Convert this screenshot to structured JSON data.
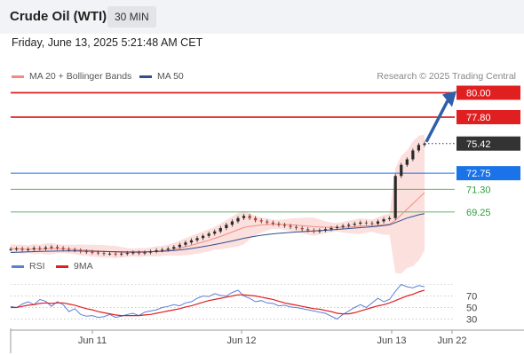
{
  "header": {
    "title": "Crude Oil (WTI)",
    "timeframe": "30 MIN",
    "datetime": "Friday, June 13, 2025 5:21:48 AM CET"
  },
  "legend": {
    "ma20": {
      "label": "MA 20 + Bollinger Bands",
      "color": "#f28b82"
    },
    "ma50": {
      "label": "MA 50",
      "color": "#2f4f8f"
    },
    "credit": "Research © 2025 Trading Central"
  },
  "rsi_legend": {
    "rsi": {
      "label": "RSI",
      "color": "#5b7fd6"
    },
    "ma9": {
      "label": "9MA",
      "color": "#e02020"
    }
  },
  "chart_data": [
    {
      "type": "line",
      "name": "price",
      "x_ticks": [
        "Jun 11",
        "Jun 12",
        "Jun 13",
        "Jun 22"
      ],
      "levels": [
        {
          "label": "80.00",
          "value": 80.0,
          "style": "resistance",
          "color": "#e02020"
        },
        {
          "label": "77.80",
          "value": 77.8,
          "style": "resistance",
          "color": "#e02020"
        },
        {
          "label": "75.42",
          "value": 75.42,
          "style": "last",
          "color": "#333333"
        },
        {
          "label": "72.75",
          "value": 72.75,
          "style": "pivot",
          "color": "#1a73e8"
        },
        {
          "label": "71.30",
          "value": 71.3,
          "style": "support",
          "color": "#2e9e3f"
        },
        {
          "label": "69.25",
          "value": 69.25,
          "style": "support",
          "color": "#2e9e3f"
        }
      ],
      "close": [
        65.9,
        65.95,
        65.85,
        65.9,
        66.0,
        65.95,
        66.05,
        66.1,
        66.0,
        65.9,
        65.85,
        65.8,
        65.7,
        65.65,
        65.6,
        65.55,
        65.5,
        65.5,
        65.45,
        65.5,
        65.55,
        65.6,
        65.55,
        65.6,
        65.7,
        65.8,
        65.85,
        65.95,
        66.1,
        66.3,
        66.5,
        66.7,
        66.9,
        67.1,
        67.3,
        67.5,
        67.8,
        68.1,
        68.4,
        68.7,
        68.9,
        68.7,
        68.5,
        68.4,
        68.3,
        68.2,
        68.1,
        68.0,
        67.9,
        67.8,
        67.7,
        67.6,
        67.5,
        67.6,
        67.7,
        67.8,
        67.9,
        68.0,
        68.1,
        68.2,
        68.3,
        68.25,
        68.2,
        68.4,
        68.6,
        68.7,
        72.5,
        73.5,
        74.0,
        74.8,
        75.3,
        75.42
      ],
      "ma20": [
        65.95,
        65.95,
        65.9,
        65.9,
        65.9,
        65.9,
        65.92,
        65.95,
        65.95,
        65.93,
        65.9,
        65.87,
        65.83,
        65.8,
        65.77,
        65.73,
        65.7,
        65.67,
        65.64,
        65.62,
        65.6,
        65.6,
        65.6,
        65.62,
        65.65,
        65.7,
        65.75,
        65.82,
        65.9,
        66.0,
        66.12,
        66.25,
        66.4,
        66.55,
        66.7,
        66.88,
        67.05,
        67.25,
        67.45,
        67.65,
        67.85,
        67.95,
        68.02,
        68.08,
        68.12,
        68.14,
        68.14,
        68.12,
        68.1,
        68.06,
        68.02,
        67.98,
        67.93,
        67.9,
        67.88,
        67.87,
        67.87,
        67.88,
        67.9,
        67.93,
        67.97,
        68.0,
        68.02,
        68.05,
        68.1,
        68.15,
        68.5,
        69.0,
        69.5,
        70.0,
        70.5,
        71.0
      ],
      "ma50": [
        65.6,
        65.62,
        65.64,
        65.66,
        65.68,
        65.7,
        65.71,
        65.72,
        65.73,
        65.74,
        65.74,
        65.74,
        65.73,
        65.72,
        65.71,
        65.7,
        65.69,
        65.68,
        65.67,
        65.66,
        65.65,
        65.65,
        65.65,
        65.66,
        65.67,
        65.69,
        65.71,
        65.74,
        65.78,
        65.83,
        65.89,
        65.96,
        66.04,
        66.13,
        66.22,
        66.32,
        66.42,
        66.53,
        66.64,
        66.76,
        66.88,
        66.98,
        67.07,
        67.15,
        67.22,
        67.28,
        67.33,
        67.37,
        67.41,
        67.45,
        67.48,
        67.51,
        67.54,
        67.57,
        67.6,
        67.64,
        67.68,
        67.72,
        67.76,
        67.8,
        67.84,
        67.88,
        67.92,
        67.97,
        68.03,
        68.1,
        68.3,
        68.5,
        68.7,
        68.85,
        69.0,
        69.1
      ],
      "ylim": [
        65.0,
        81.0
      ]
    },
    {
      "type": "line",
      "name": "rsi",
      "y_ticks": [
        70,
        50,
        30
      ],
      "rsi": [
        52,
        50,
        56,
        60,
        55,
        64,
        61,
        52,
        60,
        55,
        43,
        48,
        38,
        35,
        36,
        33,
        34,
        38,
        33,
        35,
        38,
        40,
        36,
        42,
        44,
        46,
        50,
        52,
        55,
        53,
        58,
        60,
        66,
        70,
        69,
        74,
        71,
        70,
        76,
        80,
        70,
        66,
        60,
        62,
        58,
        57,
        53,
        54,
        51,
        50,
        48,
        46,
        44,
        42,
        40,
        35,
        30,
        38,
        44,
        50,
        55,
        50,
        58,
        66,
        60,
        64,
        78,
        90,
        86,
        84,
        88,
        86
      ],
      "ma9": [
        50,
        50,
        52,
        54,
        55,
        57,
        58,
        57,
        58,
        58,
        56,
        54,
        51,
        48,
        46,
        43,
        41,
        39,
        37,
        36,
        36,
        36,
        36,
        37,
        38,
        40,
        42,
        44,
        46,
        48,
        51,
        53,
        56,
        59,
        62,
        64,
        66,
        68,
        70,
        72,
        72,
        71,
        70,
        68,
        66,
        64,
        61,
        58,
        56,
        54,
        52,
        50,
        48,
        47,
        45,
        43,
        40,
        39,
        39,
        41,
        44,
        47,
        50,
        53,
        55,
        58,
        62,
        66,
        70,
        73,
        77,
        80
      ],
      "ylim": [
        20,
        100
      ]
    }
  ]
}
